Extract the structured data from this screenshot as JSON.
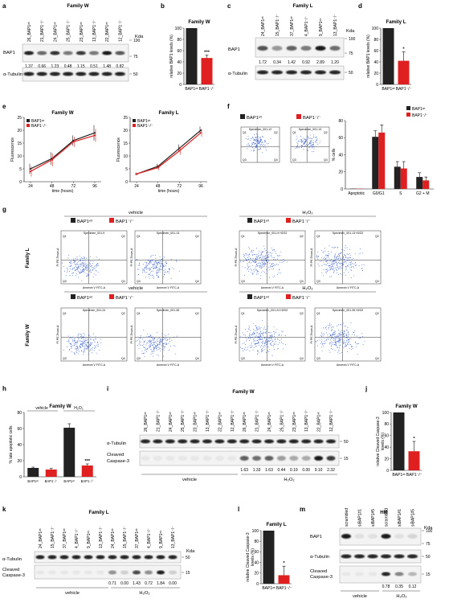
{
  "colors": {
    "black": "#222222",
    "red": "#e02020",
    "flow_dot": "#2a55c8"
  },
  "labels": {
    "family_w": "Family W",
    "family_l": "Family L",
    "kda": "Kda",
    "bap1": "BAP1",
    "tubulin": "α-Tubulin",
    "cleaved": "Cleaved",
    "caspase3": "Caspase-3",
    "vehicle": "vehicle",
    "h2o2": "H₂O₂",
    "rel_bap1": "relative BAP1 levels (%)",
    "fluorescence": "Fluorescence",
    "time_hours": "time (hours)",
    "pct_cells": "% cells",
    "pct_late": "% late apoptotic cells",
    "rel_casp": "relative Cleaved Caspase-3 levels (%)",
    "annexin": "Annexin V FITC-A",
    "pi": "PI PE-Texas-A",
    "hm": "HM",
    "bap1_wt": "BAP1ʷᵗ",
    "bap1_mut": "BAP1⁻/⁻"
  },
  "panel_a": {
    "lanes": [
      "26_BAP1ʷᵗ",
      "21_BAP1⁻/⁻",
      "24_BAP1ʷᵗ",
      "25_BAP1⁻/⁻",
      "23_BAP1ʷᵗ",
      "13_BAP1⁻/⁻",
      "22_BAP1ʷᵗ",
      "12_BAP1⁻/⁻"
    ],
    "quant": [
      "1.37",
      "0.66",
      "1.23",
      "0.48",
      "1.15",
      "0.51",
      "1.48",
      "0.82"
    ],
    "markers": [
      "100",
      "75",
      "50"
    ]
  },
  "panel_c": {
    "lanes": [
      "24_BAP1ʷᵗ",
      "15_BAP1⁻/⁻",
      "37_BAP1ʷᵗ",
      "4_BAP1⁻/⁻",
      "9_BAP1ʷᵗ",
      "13_BAP1⁻/⁻"
    ],
    "quant": [
      "1.72",
      "0.34",
      "1.42",
      "0.92",
      "2.89",
      "1.20"
    ],
    "markers": [
      "100",
      "75",
      "50"
    ]
  },
  "panel_i": {
    "lanes": [
      "26_BAP1ʷᵗ",
      "21_BAP1⁻/⁻",
      "24_BAP1ʷᵗ",
      "25_BAP1⁻/⁻",
      "23_BAP1ʷᵗ",
      "13_BAP1⁻/⁻",
      "22_BAP1ʷᵗ",
      "12_BAP1⁻/⁻",
      "26_BAP1ʷᵗ",
      "21_BAP1⁻/⁻",
      "24_BAP1ʷᵗ",
      "25_BAP1⁻/⁻",
      "23_BAP1ʷᵗ",
      "13_BAP1⁻/⁻",
      "22_BAP1ʷᵗ",
      "12_BAP1⁻/⁻"
    ],
    "quant": [
      "1.63",
      "1.33",
      "1.63",
      "0.44",
      "0.19",
      "0.00",
      "9.10",
      "2.32"
    ],
    "markers": [
      "50",
      "15"
    ]
  },
  "panel_k": {
    "lanes": [
      "24_BAP1ʷᵗ",
      "15_BAP1⁻/⁻",
      "37_BAP1ʷᵗ",
      "4_BAP1⁻/⁻",
      "9_BAP1ʷᵗ",
      "13_BAP1⁻/⁻",
      "24_BAP1ʷᵗ",
      "15_BAP1⁻/⁻",
      "37_BAP1ʷᵗ",
      "4_BAP1⁻/⁻",
      "9_BAP1ʷᵗ",
      "13_BAP1⁻/⁻"
    ],
    "quant": [
      "0.71",
      "0.00",
      "1.43",
      "0.72",
      "1.84",
      "0.00"
    ],
    "markers": [
      "50",
      "15"
    ]
  },
  "panel_m": {
    "lanes": [
      "scrambled",
      "siBAP1#1",
      "siBAP1#5",
      "scrambled",
      "siBAP1#1",
      "siBAP1#5"
    ],
    "quant": [
      "0.78",
      "0.35",
      "0.12"
    ],
    "markers": [
      "100",
      "75",
      "50",
      "15"
    ]
  },
  "flow": {
    "specimens_g": [
      "Specimen_001-9",
      "Specimen_001-13",
      "Specimen_001-9 H2O2",
      "Specimen_001-13 H2O2",
      "Specimen_001-24",
      "Specimen_001-35",
      "Specimen_001-24 H2O2",
      "Specimen_001-35 H2O2"
    ],
    "quadrants": [
      "Q1",
      "Q2",
      "Q3",
      "Q4"
    ],
    "specimens_f": [
      "Specimen_001-12",
      "Specimen_001-13"
    ]
  },
  "chart_data": [
    {
      "panel": "b",
      "type": "bar",
      "title": "Family W",
      "ylabel": "relative BAP1 levels (%)",
      "categories": [
        "BAP1ʷᵗ",
        "BAP1⁻/⁻"
      ],
      "values": [
        100,
        47
      ],
      "errors": [
        0,
        5
      ],
      "ylim": [
        0,
        100
      ],
      "yticks": [
        0,
        20,
        40,
        60,
        80,
        100
      ],
      "annotations": [
        "***"
      ]
    },
    {
      "panel": "d",
      "type": "bar",
      "title": "Family L",
      "ylabel": "relative BAP1 levels (%)",
      "categories": [
        "BAP1ʷᵗ",
        "BAP1⁻/⁻"
      ],
      "values": [
        100,
        42
      ],
      "errors": [
        0,
        16
      ],
      "ylim": [
        0,
        100
      ],
      "yticks": [
        0,
        20,
        40,
        60,
        80,
        100
      ],
      "annotations": [
        "*"
      ]
    },
    {
      "panel": "e1",
      "type": "line",
      "title": "Family W",
      "xlabel": "time (hours)",
      "ylabel": "Fluorescence",
      "x": [
        24,
        48,
        72,
        96
      ],
      "ylim": [
        0,
        25
      ],
      "yticks": [
        0,
        5,
        10,
        15,
        20,
        25
      ],
      "series": [
        {
          "name": "BAP1ʷᵗ",
          "values": [
            5,
            9,
            16,
            19
          ],
          "errors": [
            2,
            2.5,
            2,
            3
          ]
        },
        {
          "name": "BAP1⁻/⁻",
          "values": [
            4,
            8.5,
            15.5,
            18
          ],
          "errors": [
            2,
            2.5,
            2,
            2.5
          ]
        }
      ]
    },
    {
      "panel": "e2",
      "type": "line",
      "title": "Family L",
      "xlabel": "time (hours)",
      "ylabel": "Fluorescence",
      "x": [
        24,
        48,
        72,
        96
      ],
      "ylim": [
        0,
        25
      ],
      "yticks": [
        0,
        5,
        10,
        15,
        20,
        25
      ],
      "series": [
        {
          "name": "BAP1ʷᵗ",
          "values": [
            3,
            6,
            13,
            20
          ],
          "errors": [
            0.5,
            1,
            1.5,
            1.5
          ]
        },
        {
          "name": "BAP1⁻/⁻",
          "values": [
            3,
            5.5,
            12,
            19
          ],
          "errors": [
            0.5,
            1,
            1.5,
            1.5
          ]
        }
      ]
    },
    {
      "panel": "f",
      "type": "bar",
      "ylabel": "% cells",
      "categories": [
        "Apoptotic",
        "G0/G1",
        "S",
        "G2 + M"
      ],
      "ylim": [
        0,
        80
      ],
      "yticks": [
        0,
        20,
        40,
        60,
        80
      ],
      "series": [
        {
          "name": "BAP1ʷᵗ",
          "values": [
            0.3,
            61,
            26,
            14
          ],
          "errors": [
            0,
            7,
            6,
            5
          ]
        },
        {
          "name": "BAP1⁻/⁻",
          "values": [
            0.3,
            66,
            24,
            10
          ],
          "errors": [
            0,
            9,
            8,
            4
          ]
        }
      ]
    },
    {
      "panel": "h",
      "type": "bar",
      "title": "Family W",
      "ylabel": "% late apoptotic cells",
      "categories": [
        "BAP1ʷᵗ",
        "BAP1⁻/⁻",
        "BAP1ʷᵗ",
        "BAP1⁻/⁻"
      ],
      "groups": [
        "vehicle",
        "H₂O₂"
      ],
      "values": [
        11,
        9,
        61,
        14
      ],
      "errors": [
        1,
        1.5,
        5,
        2
      ],
      "ylim": [
        0,
        80
      ],
      "yticks": [
        0,
        20,
        40,
        60,
        80
      ],
      "annotations": [
        "***"
      ]
    },
    {
      "panel": "j",
      "type": "bar",
      "title": "Family W",
      "ylabel": "relative Cleaved Caspase-3 levels (%)",
      "categories": [
        "BAP1ʷᵗ",
        "BAP1⁻/⁻"
      ],
      "values": [
        100,
        33
      ],
      "errors": [
        0,
        17
      ],
      "ylim": [
        0,
        100
      ],
      "yticks": [
        0,
        20,
        40,
        60,
        80,
        100
      ],
      "annotations": [
        "*"
      ]
    },
    {
      "panel": "l",
      "type": "bar",
      "title": "Family L",
      "ylabel": "relative Cleaved Caspase-3 levels (%)",
      "categories": [
        "BAP1ʷᵗ",
        "BAP1⁻/⁻"
      ],
      "values": [
        100,
        16
      ],
      "errors": [
        0,
        17
      ],
      "ylim": [
        0,
        100
      ],
      "yticks": [
        0,
        20,
        40,
        60,
        80,
        100
      ],
      "annotations": [
        "*"
      ]
    }
  ]
}
